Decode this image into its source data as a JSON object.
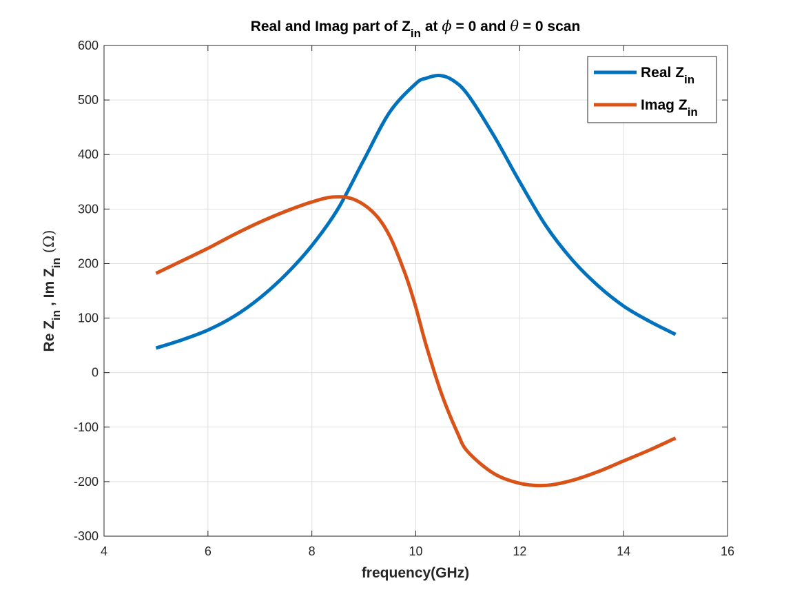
{
  "chart_data": {
    "type": "line",
    "title": {
      "prefix": "Real and Imag part of Z",
      "sub": "in",
      "mid1": " at ",
      "phi": "ϕ",
      "mid2": " = 0 and ",
      "theta": "θ",
      "suffix": " = 0 scan"
    },
    "xlabel": "frequency(GHz)",
    "ylabel": {
      "p1": "Re Z",
      "s1": "in",
      "p2": " , Im Z",
      "s2": "in",
      "p3": "  (Ω)"
    },
    "xlim": [
      4,
      16
    ],
    "ylim": [
      -300,
      600
    ],
    "xticks": [
      4,
      6,
      8,
      10,
      12,
      14,
      16
    ],
    "yticks": [
      -300,
      -200,
      -100,
      0,
      100,
      200,
      300,
      400,
      500,
      600
    ],
    "grid": true,
    "legend_position": "top-right",
    "series": [
      {
        "name": "Real Z",
        "name_sub": "in",
        "color": "#0072BD",
        "x": [
          5.0,
          5.5,
          6.0,
          6.5,
          7.0,
          7.5,
          8.0,
          8.5,
          9.0,
          9.5,
          10.0,
          10.2,
          10.45,
          10.7,
          11.0,
          11.5,
          12.0,
          12.5,
          13.0,
          13.5,
          14.0,
          14.5,
          15.0
        ],
        "y": [
          45,
          60,
          78,
          103,
          137,
          180,
          233,
          300,
          390,
          478,
          530,
          540,
          545,
          537,
          510,
          435,
          350,
          270,
          208,
          160,
          122,
          94,
          70
        ]
      },
      {
        "name": "Imag Z",
        "name_sub": "in",
        "color": "#D95319",
        "x": [
          5.0,
          5.5,
          6.0,
          6.5,
          7.0,
          7.5,
          8.0,
          8.4,
          8.8,
          9.2,
          9.5,
          9.8,
          10.0,
          10.2,
          10.5,
          10.8,
          11.0,
          11.5,
          12.0,
          12.5,
          13.0,
          13.5,
          14.0,
          14.5,
          15.0
        ],
        "y": [
          182,
          205,
          228,
          253,
          276,
          296,
          313,
          322,
          318,
          292,
          250,
          180,
          120,
          50,
          -40,
          -110,
          -145,
          -185,
          -203,
          -207,
          -198,
          -182,
          -162,
          -142,
          -120
        ]
      }
    ]
  }
}
